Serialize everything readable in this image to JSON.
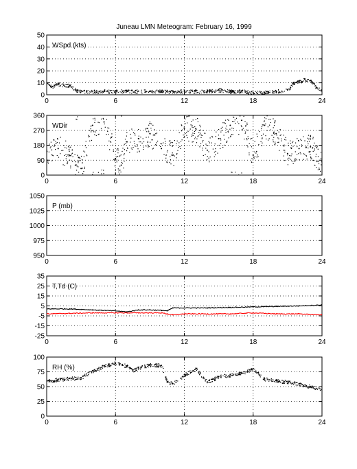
{
  "figure": {
    "title": "Juneau LMN Meteogram:  February 16, 1999"
  },
  "chart_data": [
    {
      "type": "scatter",
      "label": "WSpd (kts)",
      "xlim": [
        0,
        24
      ],
      "xticks": [
        0,
        6,
        12,
        18,
        24
      ],
      "ylim": [
        0,
        50
      ],
      "yticks": [
        0,
        10,
        20,
        30,
        40,
        50
      ],
      "grid": true,
      "series": [
        {
          "color": "#000000",
          "x": [
            0,
            0.5,
            1,
            1.5,
            2,
            2.5,
            3,
            4,
            5,
            6,
            7,
            8,
            9,
            10,
            11,
            12,
            13,
            14,
            15,
            16,
            17,
            18,
            19,
            20,
            21,
            21.5,
            22,
            22.5,
            23,
            23.5,
            24
          ],
          "y": [
            10,
            7,
            9,
            8,
            8,
            4,
            3,
            3,
            3,
            3,
            3,
            3,
            3,
            3,
            3,
            3,
            3,
            3,
            4,
            3,
            3,
            2,
            2,
            3,
            4,
            10,
            11,
            13,
            12,
            6,
            3
          ]
        }
      ]
    },
    {
      "type": "scatter",
      "label": "WDir",
      "xlim": [
        0,
        24
      ],
      "xticks": [
        0,
        6,
        12,
        18,
        24
      ],
      "ylim": [
        0,
        360
      ],
      "yticks": [
        0,
        90,
        180,
        270,
        360
      ],
      "grid": true,
      "series": [
        {
          "color": "#000000",
          "x": [
            0,
            1,
            2,
            2.5,
            3,
            4,
            5,
            6,
            6.5,
            7,
            8,
            9,
            10,
            11,
            12,
            13,
            14,
            15,
            16,
            17,
            18,
            19,
            20,
            21,
            22,
            23,
            24
          ],
          "y": [
            150,
            160,
            120,
            60,
            40,
            300,
            320,
            100,
            60,
            200,
            220,
            250,
            160,
            120,
            280,
            280,
            150,
            220,
            300,
            330,
            120,
            300,
            250,
            130,
            160,
            170,
            80
          ]
        }
      ]
    },
    {
      "type": "line",
      "label": "P (mb)",
      "xlim": [
        0,
        24
      ],
      "xticks": [
        0,
        6,
        12,
        18,
        24
      ],
      "ylim": [
        950,
        1050
      ],
      "yticks": [
        950,
        975,
        1000,
        1025,
        1050
      ],
      "grid": true,
      "series": []
    },
    {
      "type": "line",
      "label": "T,Td (C)",
      "xlim": [
        0,
        24
      ],
      "xticks": [
        0,
        6,
        12,
        18,
        24
      ],
      "ylim": [
        -25,
        35
      ],
      "yticks": [
        -25,
        -15,
        -5,
        5,
        15,
        25,
        35
      ],
      "grid": true,
      "series": [
        {
          "color": "#000000",
          "x": [
            0,
            2,
            4,
            6,
            7,
            8,
            9,
            10,
            10.5,
            11,
            12,
            14,
            16,
            18,
            20,
            22,
            24
          ],
          "y": [
            2,
            2,
            1,
            0,
            -1,
            1,
            1,
            0.5,
            0,
            3,
            3,
            3,
            3.5,
            4,
            4.5,
            5,
            6
          ]
        },
        {
          "color": "#ff0000",
          "x": [
            0,
            2,
            4,
            6,
            8,
            10,
            10.5,
            11,
            12,
            14,
            16,
            18,
            20,
            22,
            24
          ],
          "y": [
            -3,
            -2.5,
            -2,
            -2,
            -2,
            -2,
            -3,
            -4,
            -3,
            -3,
            -3,
            -2,
            -3,
            -3,
            -4
          ]
        }
      ]
    },
    {
      "type": "scatter",
      "label": "RH (%)",
      "xlim": [
        0,
        24
      ],
      "xticks": [
        0,
        6,
        12,
        18,
        24
      ],
      "ylim": [
        0,
        100
      ],
      "yticks": [
        0,
        25,
        50,
        75,
        100
      ],
      "grid": true,
      "series": [
        {
          "color": "#000000",
          "x": [
            0,
            1,
            2,
            3,
            4,
            5,
            6,
            7,
            7.5,
            8,
            9,
            10,
            10.5,
            11,
            12,
            13,
            14,
            15,
            16,
            17,
            18,
            19,
            20,
            21,
            22,
            23,
            24
          ],
          "y": [
            60,
            62,
            64,
            65,
            77,
            85,
            90,
            85,
            78,
            82,
            87,
            86,
            58,
            55,
            70,
            80,
            58,
            67,
            70,
            73,
            80,
            63,
            60,
            58,
            55,
            50,
            45
          ]
        }
      ]
    }
  ]
}
